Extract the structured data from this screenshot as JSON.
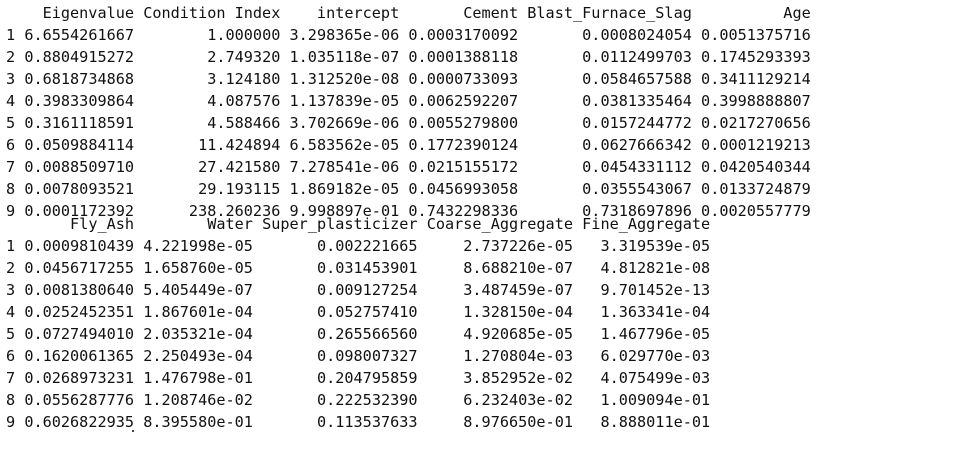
{
  "output": {
    "block1": {
      "columns": [
        "Eigenvalue",
        "Condition Index",
        "intercept",
        "Cement",
        "Blast_Furnace_Slag",
        "Age"
      ],
      "rows": [
        {
          "index": "1",
          "values": [
            "6.6554261667",
            "1.000000",
            "3.298365e-06",
            "0.0003170092",
            "0.0008024054",
            "0.0051375716"
          ]
        },
        {
          "index": "2",
          "values": [
            "0.8804915272",
            "2.749320",
            "1.035118e-07",
            "0.0001388118",
            "0.0112499703",
            "0.1745293393"
          ]
        },
        {
          "index": "3",
          "values": [
            "0.6818734868",
            "3.124180",
            "1.312520e-08",
            "0.0000733093",
            "0.0584657588",
            "0.3411129214"
          ]
        },
        {
          "index": "4",
          "values": [
            "0.3983309864",
            "4.087576",
            "1.137839e-05",
            "0.0062592207",
            "0.0381335464",
            "0.3998888807"
          ]
        },
        {
          "index": "5",
          "values": [
            "0.3161118591",
            "4.588466",
            "3.702669e-06",
            "0.0055279800",
            "0.0157244772",
            "0.0217270656"
          ]
        },
        {
          "index": "6",
          "values": [
            "0.0509884114",
            "11.424894",
            "6.583562e-05",
            "0.1772390124",
            "0.0627666342",
            "0.0001219213"
          ]
        },
        {
          "index": "7",
          "values": [
            "0.0088509710",
            "27.421580",
            "7.278541e-06",
            "0.0215155172",
            "0.0454331112",
            "0.0420540344"
          ]
        },
        {
          "index": "8",
          "values": [
            "0.0078093521",
            "29.193115",
            "1.869182e-05",
            "0.0456993058",
            "0.0355543067",
            "0.0133724879"
          ]
        },
        {
          "index": "9",
          "values": [
            "0.0001172392",
            "238.260236",
            "9.998897e-01",
            "0.7432298336",
            "0.7318697896",
            "0.0020557779"
          ]
        }
      ]
    },
    "block2": {
      "columns": [
        "Fly_Ash",
        "Water",
        "Super_plasticizer",
        "Coarse_Aggregate",
        "Fine_Aggregate"
      ],
      "rows": [
        {
          "index": "1",
          "values": [
            "0.0009810439",
            "4.221998e-05",
            "0.002221665",
            "2.737226e-05",
            "3.319539e-05"
          ]
        },
        {
          "index": "2",
          "values": [
            "0.0456717255",
            "1.658760e-05",
            "0.031453901",
            "8.688210e-07",
            "4.812821e-08"
          ]
        },
        {
          "index": "3",
          "values": [
            "0.0081380640",
            "5.405449e-07",
            "0.009127254",
            "3.487459e-07",
            "9.701452e-13"
          ]
        },
        {
          "index": "4",
          "values": [
            "0.0252452351",
            "1.867601e-04",
            "0.052757410",
            "1.328150e-04",
            "1.363341e-04"
          ]
        },
        {
          "index": "5",
          "values": [
            "0.0727494010",
            "2.035321e-04",
            "0.265566560",
            "4.920685e-05",
            "1.467796e-05"
          ]
        },
        {
          "index": "6",
          "values": [
            "0.1620061365",
            "2.250493e-04",
            "0.098007327",
            "1.270804e-03",
            "6.029770e-03"
          ]
        },
        {
          "index": "7",
          "values": [
            "0.0268973231",
            "1.476798e-01",
            "0.204795859",
            "3.852952e-02",
            "4.075499e-03"
          ]
        },
        {
          "index": "8",
          "values": [
            "0.0556287776",
            "1.208746e-02",
            "0.222532390",
            "6.232403e-02",
            "1.009094e-01"
          ]
        },
        {
          "index": "9",
          "values": [
            "0.6026822935",
            "8.395580e-01",
            "0.113537633",
            "8.976650e-01",
            "8.888011e-01"
          ]
        }
      ]
    }
  }
}
